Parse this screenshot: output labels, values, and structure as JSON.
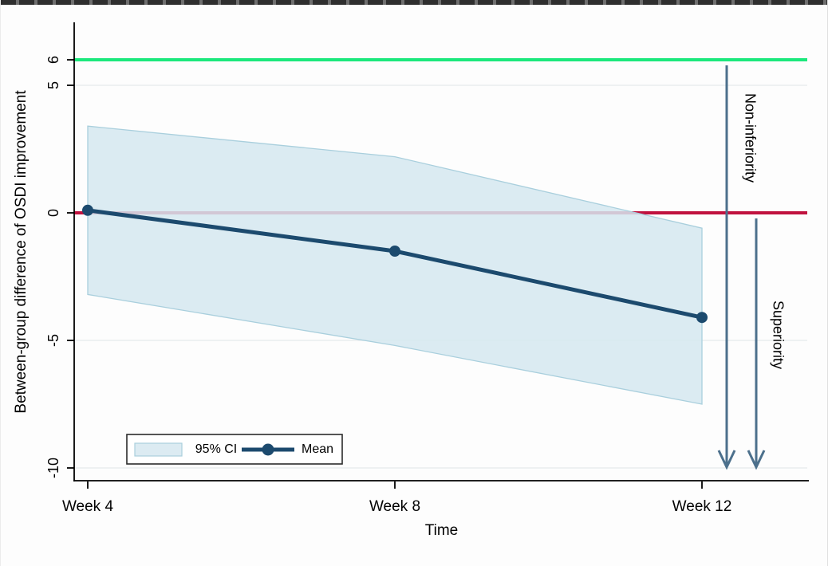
{
  "chart_data": {
    "type": "line",
    "title": "",
    "xlabel": "Time",
    "ylabel": "Between-group difference of OSDI improvement",
    "x_weeks": [
      4,
      8,
      12
    ],
    "x_tick_labels": [
      "Week 4",
      "Week 8",
      "Week 12"
    ],
    "y_ticks": [
      6,
      5,
      0,
      -5,
      -10
    ],
    "y_tick_labels": [
      "6",
      "5",
      "0",
      "-5",
      "-10"
    ],
    "ylim": [
      -10.5,
      7.4
    ],
    "gridline_values": [
      5,
      -5,
      -10
    ],
    "series": [
      {
        "name": "Mean",
        "values": [
          0.1,
          -1.5,
          -4.1
        ]
      }
    ],
    "ci_band": {
      "name": "95% CI",
      "upper": [
        3.4,
        2.2,
        -0.6
      ],
      "lower": [
        -3.2,
        -5.2,
        -7.5
      ]
    },
    "reference_lines": [
      {
        "name": "non-inferiority-margin",
        "value": 6
      },
      {
        "name": "zero-line",
        "value": 0
      }
    ],
    "annotations": [
      {
        "label": "Non-inferiority",
        "from_value": 6,
        "to_value": -10
      },
      {
        "label": "Superiority",
        "from_value": 0,
        "to_value": -10
      }
    ],
    "legend": {
      "ci_label": "95% CI",
      "mean_label": "Mean",
      "position": "bottom-left"
    },
    "grid": "horizontal only, light gray"
  },
  "colors": {
    "mean": "#1c4a6e",
    "ci_fill": "rgba(213,232,240,0.85)",
    "ci_stroke": "#a9cfdd",
    "ci_swatch": "#dcebf2",
    "green_line": "#1ce87c",
    "red_line": "#c0123f",
    "arrow": "#4c708c",
    "grid": "#e9edef",
    "axis": "#000000",
    "legend_border": "#2b2b2b"
  }
}
